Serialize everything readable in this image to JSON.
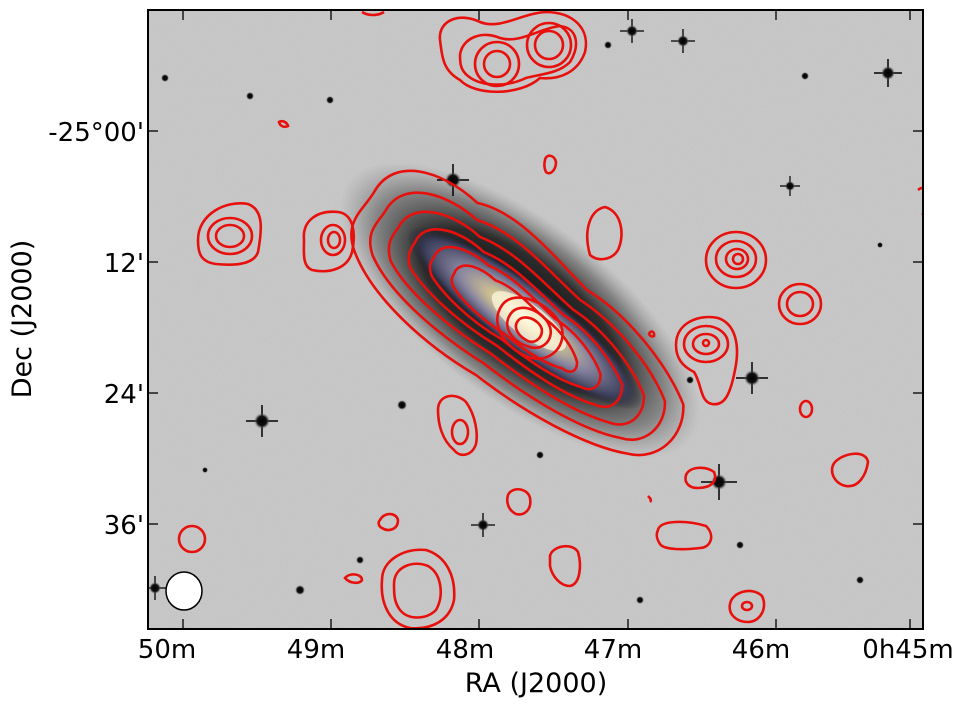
{
  "figure": {
    "xlabel": "RA (J2000)",
    "ylabel": "Dec (J2000)",
    "x_ticks": [
      "50m",
      "49m",
      "48m",
      "47m",
      "46m",
      "0h45m"
    ],
    "y_ticks": [
      "-25°00'",
      "12'",
      "24'",
      "36'"
    ],
    "colors": {
      "contour": "#e8100c",
      "frame": "#000000",
      "sky_background": "#b9b9b9"
    },
    "icons": [
      "beam-ellipse-icon"
    ]
  }
}
